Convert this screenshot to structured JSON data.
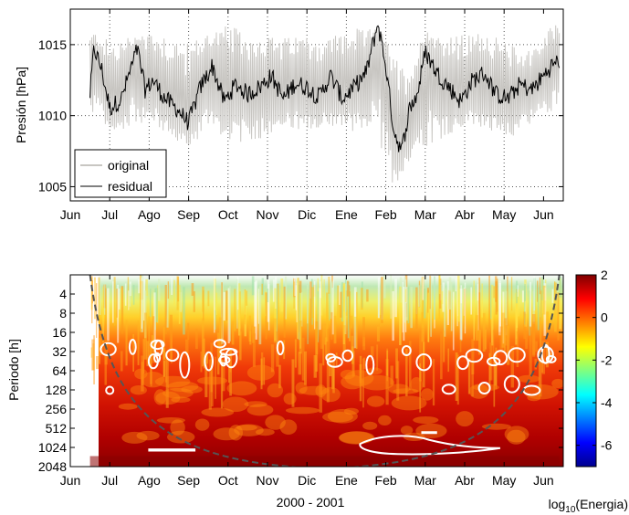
{
  "colors": {
    "original": "#c8c6c2",
    "residual": "#000000",
    "contour": "#ffffff",
    "coi": "#555555"
  },
  "chart_data": [
    {
      "type": "line",
      "ylabel": "Presión [hPa]",
      "ylim": [
        1004,
        1017.5
      ],
      "yticks": [
        1005,
        1010,
        1015
      ],
      "yticklabels": [
        "1005",
        "1010",
        "1015"
      ],
      "xticklabels": [
        "Jun",
        "Jul",
        "Ago",
        "Sep",
        "Oct",
        "Nov",
        "Dic",
        "Ene",
        "Feb",
        "Mar",
        "Abr",
        "May",
        "Jun"
      ],
      "xlim_months": [
        0,
        12.5
      ],
      "data_start_month": 0.5,
      "data_end_month": 12.4,
      "grid": true,
      "legend_position": "bottom-left",
      "series": [
        {
          "name": "original",
          "envelope_upper": [
            [
              0.5,
              1016.0
            ],
            [
              1.0,
              1015.3
            ],
            [
              1.5,
              1015.6
            ],
            [
              2.0,
              1016.2
            ],
            [
              2.5,
              1015.8
            ],
            [
              3.0,
              1015.1
            ],
            [
              3.5,
              1016.0
            ],
            [
              4.0,
              1016.4
            ],
            [
              4.5,
              1015.8
            ],
            [
              5.0,
              1015.6
            ],
            [
              5.5,
              1015.5
            ],
            [
              6.0,
              1015.8
            ],
            [
              6.5,
              1015.4
            ],
            [
              7.0,
              1016.3
            ],
            [
              7.5,
              1016.0
            ],
            [
              7.8,
              1016.3
            ],
            [
              8.0,
              1015.4
            ],
            [
              8.3,
              1013.9
            ],
            [
              8.6,
              1013.2
            ],
            [
              9.0,
              1016.2
            ],
            [
              9.5,
              1015.6
            ],
            [
              10.0,
              1015.7
            ],
            [
              10.5,
              1015.9
            ],
            [
              11.0,
              1015.3
            ],
            [
              11.5,
              1014.5
            ],
            [
              12.0,
              1015.6
            ],
            [
              12.4,
              1017.1
            ]
          ],
          "envelope_lower": [
            [
              0.5,
              1010.2
            ],
            [
              1.0,
              1008.5
            ],
            [
              1.5,
              1009.3
            ],
            [
              2.0,
              1009.6
            ],
            [
              2.5,
              1008.5
            ],
            [
              3.0,
              1007.6
            ],
            [
              3.5,
              1009.2
            ],
            [
              4.0,
              1008.3
            ],
            [
              4.5,
              1008.0
            ],
            [
              5.0,
              1008.6
            ],
            [
              5.5,
              1009.2
            ],
            [
              6.0,
              1008.4
            ],
            [
              6.5,
              1009.1
            ],
            [
              7.0,
              1009.2
            ],
            [
              7.5,
              1008.3
            ],
            [
              7.8,
              1008.3
            ],
            [
              8.0,
              1006.2
            ],
            [
              8.3,
              1004.3
            ],
            [
              8.6,
              1006.8
            ],
            [
              9.0,
              1007.8
            ],
            [
              9.5,
              1008.5
            ],
            [
              10.0,
              1009.1
            ],
            [
              10.5,
              1009.0
            ],
            [
              11.0,
              1007.9
            ],
            [
              11.5,
              1009.2
            ],
            [
              12.0,
              1009.9
            ],
            [
              12.4,
              1010.7
            ]
          ]
        },
        {
          "name": "residual",
          "values": [
            [
              0.5,
              1011.5
            ],
            [
              0.6,
              1014.8
            ],
            [
              0.8,
              1013.2
            ],
            [
              1.0,
              1010.5
            ],
            [
              1.3,
              1011.2
            ],
            [
              1.5,
              1013.0
            ],
            [
              1.7,
              1014.7
            ],
            [
              1.9,
              1011.8
            ],
            [
              2.1,
              1012.5
            ],
            [
              2.4,
              1011.2
            ],
            [
              2.7,
              1010.5
            ],
            [
              3.0,
              1009.5
            ],
            [
              3.3,
              1012.0
            ],
            [
              3.6,
              1013.5
            ],
            [
              3.9,
              1011.0
            ],
            [
              4.2,
              1012.2
            ],
            [
              4.5,
              1011.5
            ],
            [
              4.8,
              1012.0
            ],
            [
              5.1,
              1012.8
            ],
            [
              5.4,
              1011.2
            ],
            [
              5.7,
              1012.3
            ],
            [
              6.0,
              1012.0
            ],
            [
              6.3,
              1011.3
            ],
            [
              6.6,
              1012.8
            ],
            [
              6.9,
              1011.2
            ],
            [
              7.2,
              1012.0
            ],
            [
              7.5,
              1013.0
            ],
            [
              7.8,
              1016.5
            ],
            [
              8.0,
              1013.5
            ],
            [
              8.2,
              1009.0
            ],
            [
              8.4,
              1007.5
            ],
            [
              8.6,
              1010.5
            ],
            [
              8.8,
              1011.5
            ],
            [
              9.0,
              1014.5
            ],
            [
              9.3,
              1013.0
            ],
            [
              9.6,
              1012.0
            ],
            [
              9.9,
              1011.0
            ],
            [
              10.2,
              1012.5
            ],
            [
              10.5,
              1013.0
            ],
            [
              10.8,
              1011.5
            ],
            [
              11.1,
              1011.2
            ],
            [
              11.4,
              1012.2
            ],
            [
              11.7,
              1011.8
            ],
            [
              12.0,
              1012.8
            ],
            [
              12.2,
              1013.5
            ],
            [
              12.4,
              1013.9
            ]
          ]
        }
      ]
    },
    {
      "type": "heatmap",
      "ylabel": "Periodo [h]",
      "xlabel": "2000 - 2001",
      "yaxis_scale": "log2",
      "ylim": [
        2,
        2048
      ],
      "yticks": [
        4,
        8,
        16,
        32,
        64,
        128,
        256,
        512,
        1024,
        2048
      ],
      "yticklabels": [
        "4",
        "8",
        "16",
        "32",
        "64",
        "128",
        "256",
        "512",
        "1024",
        "2048"
      ],
      "xticklabels": [
        "Jun",
        "Jul",
        "Ago",
        "Sep",
        "Oct",
        "Nov",
        "Dic",
        "Ene",
        "Feb",
        "Mar",
        "Abr",
        "May",
        "Jun"
      ],
      "xlim_months": [
        0,
        12.5
      ],
      "data_start_month": 0.5,
      "data_end_month": 12.4,
      "energy_log10_by_period": [
        [
          2,
          0.3
        ],
        [
          4,
          0.6
        ],
        [
          8,
          0.9
        ],
        [
          16,
          1.2
        ],
        [
          32,
          1.5
        ],
        [
          64,
          1.7
        ],
        [
          128,
          1.8
        ],
        [
          256,
          1.9
        ],
        [
          512,
          2.0
        ],
        [
          1024,
          2.2
        ],
        [
          2048,
          2.5
        ]
      ],
      "contours": "white outlines (significance regions)",
      "cone_of_influence": true,
      "colorbar": {
        "label": "log10(Energia)",
        "label_base": "log",
        "label_subscript": "10",
        "label_rest": "(Energia)",
        "range": [
          -7,
          2
        ],
        "ticks": [
          2,
          0,
          -2,
          -4,
          -6
        ],
        "ticklabels": [
          "2",
          "0",
          "-2",
          "-4",
          "-6"
        ],
        "colormap": "jet"
      }
    }
  ]
}
